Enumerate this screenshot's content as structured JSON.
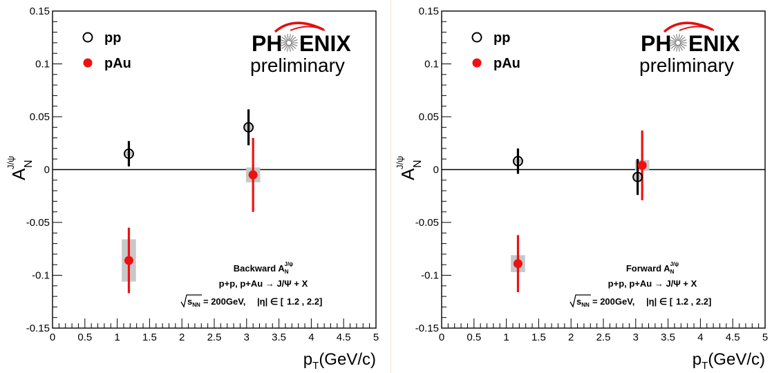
{
  "logo": {
    "brand": "PHENIX",
    "word": "preliminary"
  },
  "chart_data": [
    {
      "type": "scatter",
      "xlabel": "p_T(GeV/c)",
      "ylabel": "A_N^{J/ψ}",
      "xlim": [
        0,
        5
      ],
      "ylim": [
        -0.15,
        0.15
      ],
      "xticks": [
        "0",
        "0.5",
        "1",
        "1.5",
        "2",
        "2.5",
        "3",
        "3.5",
        "4",
        "4.5",
        "5"
      ],
      "yticks": [
        "0.15",
        "0.1",
        "0.05",
        "0",
        "-0.05",
        "-0.1",
        "-0.15"
      ],
      "legend": [
        {
          "label": "pp",
          "marker": "open-circle",
          "color": "#000000"
        },
        {
          "label": "pAu",
          "marker": "filled-circle",
          "color": "#ee1111"
        }
      ],
      "annotation": {
        "title": "Backward",
        "process": "p+p, p+Au → J/Ψ + X",
        "energy": "= 200GeV,",
        "eta_range": "1.2 , 2.2"
      },
      "series": [
        {
          "name": "pp",
          "color": "#000000",
          "filled": false,
          "points": [
            {
              "x": 1.18,
              "y": 0.015,
              "err": 0.012,
              "sys_x": 0.06,
              "sys_y": 0.002
            },
            {
              "x": 3.03,
              "y": 0.04,
              "err": 0.017,
              "sys_x": 0.06,
              "sys_y": 0.003
            }
          ]
        },
        {
          "name": "pAu",
          "color": "#ee1111",
          "filled": true,
          "points": [
            {
              "x": 1.18,
              "y": -0.086,
              "err": 0.031,
              "sys_x": 0.11,
              "sys_y": 0.02
            },
            {
              "x": 3.1,
              "y": -0.005,
              "err": 0.035,
              "sys_x": 0.11,
              "sys_y": 0.007
            }
          ]
        }
      ]
    },
    {
      "type": "scatter",
      "xlabel": "p_T(GeV/c)",
      "ylabel": "A_N^{J/ψ}",
      "xlim": [
        0,
        5
      ],
      "ylim": [
        -0.15,
        0.15
      ],
      "xticks": [
        "0",
        "0.5",
        "1",
        "1.5",
        "2",
        "2.5",
        "3",
        "3.5",
        "4",
        "4.5",
        "5"
      ],
      "yticks": [
        "0.15",
        "0.1",
        "0.05",
        "0",
        "-0.05",
        "-0.1",
        "-0.15"
      ],
      "legend": [
        {
          "label": "pp",
          "marker": "open-circle",
          "color": "#000000"
        },
        {
          "label": "pAu",
          "marker": "filled-circle",
          "color": "#ee1111"
        }
      ],
      "annotation": {
        "title": "Forward",
        "process": "p+p, p+Au → J/Ψ + X",
        "energy": "= 200GeV,",
        "eta_range": "1.2 , 2.2"
      },
      "series": [
        {
          "name": "pp",
          "color": "#000000",
          "filled": false,
          "points": [
            {
              "x": 1.18,
              "y": 0.008,
              "err": 0.012,
              "sys_x": 0.06,
              "sys_y": 0.002
            },
            {
              "x": 3.03,
              "y": -0.007,
              "err": 0.017,
              "sys_x": 0.06,
              "sys_y": 0.003
            }
          ]
        },
        {
          "name": "pAu",
          "color": "#ee1111",
          "filled": true,
          "points": [
            {
              "x": 1.18,
              "y": -0.089,
              "err": 0.027,
              "sys_x": 0.11,
              "sys_y": 0.008
            },
            {
              "x": 3.1,
              "y": 0.004,
              "err": 0.033,
              "sys_x": 0.11,
              "sys_y": 0.005
            }
          ]
        }
      ]
    }
  ]
}
